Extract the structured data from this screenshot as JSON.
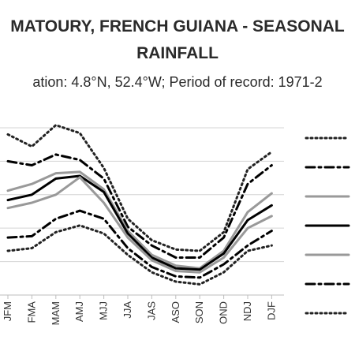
{
  "chart_data": {
    "type": "line",
    "title_line1": "MATOURY, FRENCH GUIANA - SEASONAL",
    "title_line2": "RAINFALL",
    "subtitle": "ation: 4.8°N, 52.4°W; Period of record: 1971-2",
    "categories": [
      "JFM",
      "FMA",
      "MAM",
      "AMJ",
      "MJJ",
      "JJA",
      "JAS",
      "ASO",
      "SON",
      "OND",
      "NDJ",
      "DJF"
    ],
    "grid": "horizontal",
    "legend_placement": "right",
    "series": [
      {
        "style": "dotted",
        "color": "#222222",
        "values": [
          -0.05,
          -0.14,
          0.02,
          -0.04,
          -0.3,
          -0.68,
          -0.84,
          -0.91,
          -0.92,
          -0.78,
          -0.31,
          -0.18
        ]
      },
      {
        "style": "dashdot",
        "color": "#000000",
        "values": [
          -0.25,
          -0.28,
          -0.2,
          -0.24,
          -0.38,
          -0.74,
          -0.88,
          -0.97,
          -0.97,
          -0.82,
          -0.42,
          -0.28
        ]
      },
      {
        "style": "solid",
        "color": "#999999",
        "values": [
          -0.47,
          -0.42,
          -0.34,
          -0.33,
          -0.46,
          -0.77,
          -0.95,
          -1.03,
          -1.05,
          -0.92,
          -0.63,
          -0.49
        ]
      },
      {
        "style": "solid",
        "color": "#000000",
        "values": [
          -0.54,
          -0.5,
          -0.38,
          -0.36,
          -0.48,
          -0.79,
          -0.97,
          -1.05,
          -1.06,
          -0.94,
          -0.69,
          -0.58
        ]
      },
      {
        "style": "solid",
        "color": "#999999",
        "values": [
          -0.6,
          -0.56,
          -0.5,
          -0.37,
          -0.56,
          -0.82,
          -0.99,
          -1.07,
          -1.08,
          -0.97,
          -0.75,
          -0.66
        ]
      },
      {
        "style": "dashdot",
        "color": "#000000",
        "values": [
          -0.82,
          -0.81,
          -0.68,
          -0.62,
          -0.68,
          -0.9,
          -1.04,
          -1.11,
          -1.12,
          -1.02,
          -0.88,
          -0.77
        ]
      },
      {
        "style": "dotted",
        "color": "#222222",
        "values": [
          -0.92,
          -0.9,
          -0.78,
          -0.73,
          -0.79,
          -0.95,
          -1.08,
          -1.15,
          -1.17,
          -1.08,
          -0.92,
          -0.88
        ]
      }
    ],
    "ylim": [
      -1.25,
      0.1
    ]
  }
}
